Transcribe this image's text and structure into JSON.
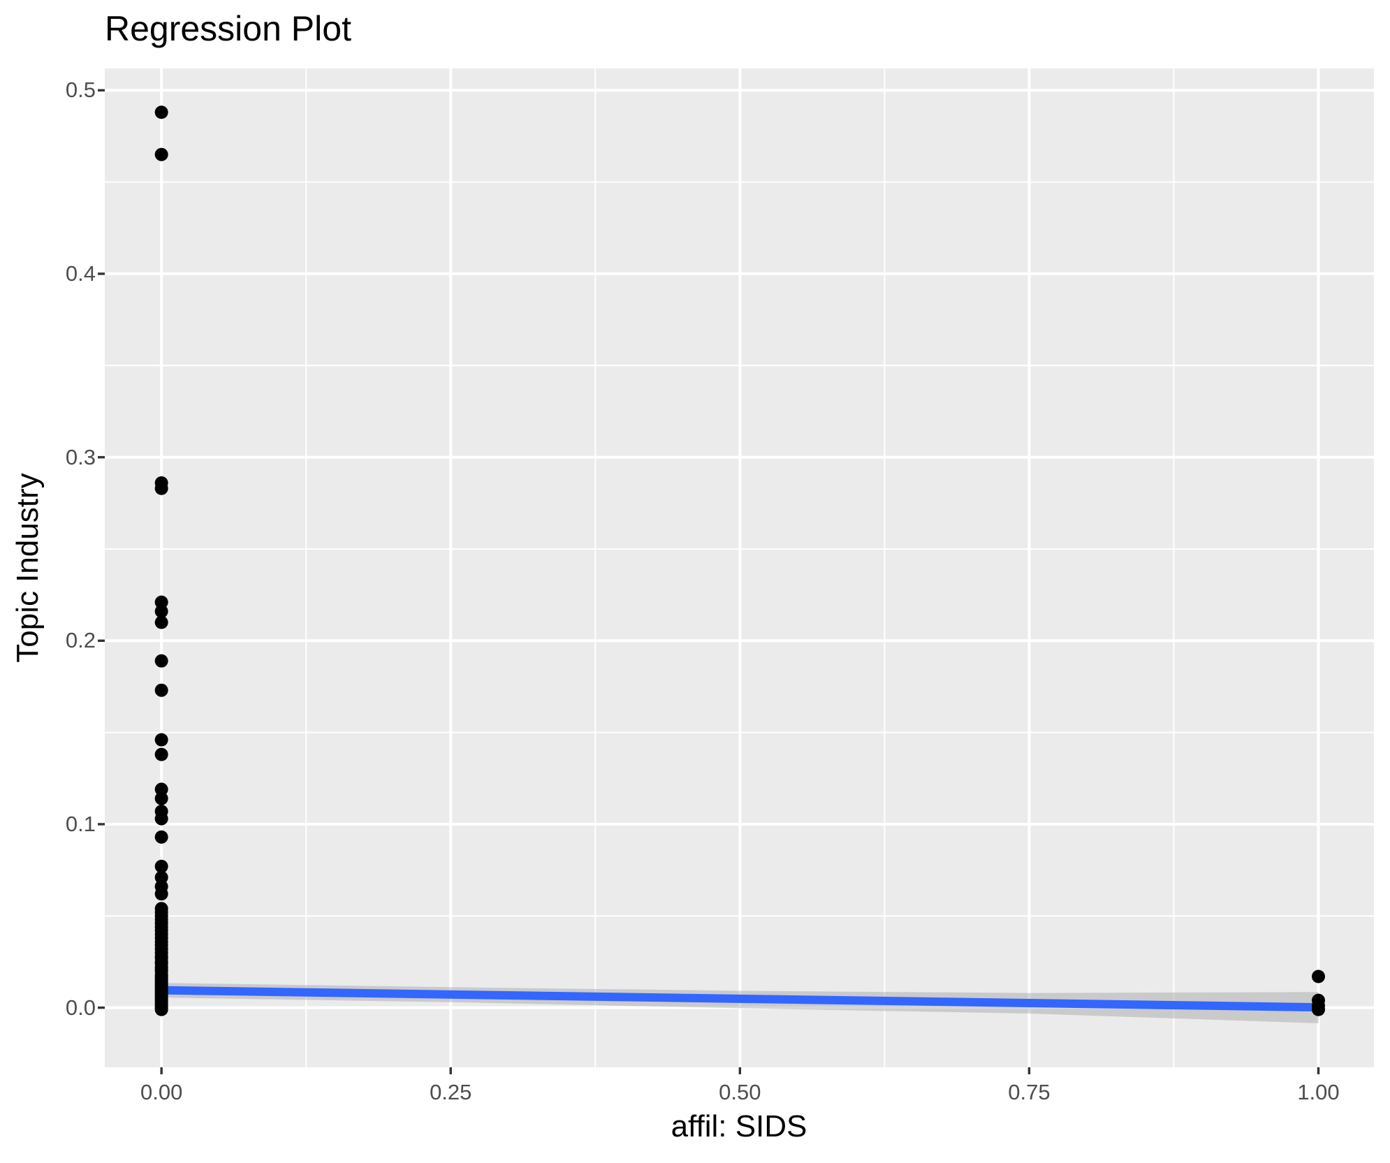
{
  "chart_data": {
    "type": "scatter",
    "title": "Regression Plot",
    "xlabel": "affil: SIDS",
    "ylabel": "Topic Industry",
    "xlim": [
      -0.049,
      1.048
    ],
    "ylim": [
      -0.0325,
      0.5119
    ],
    "grid": true,
    "legend_position": "none",
    "x_ticks": {
      "values": [
        0.0,
        0.25,
        0.5,
        0.75,
        1.0
      ],
      "labels": [
        "0.00",
        "0.25",
        "0.50",
        "0.75",
        "1.00"
      ]
    },
    "y_ticks": {
      "values": [
        0.0,
        0.1,
        0.2,
        0.3,
        0.4,
        0.5
      ],
      "labels": [
        "0.0",
        "0.1",
        "0.2",
        "0.3",
        "0.4",
        "0.5"
      ]
    },
    "x_minor_gridlines": [
      0.125,
      0.375,
      0.625,
      0.875
    ],
    "y_minor_gridlines": [
      0.05,
      0.15,
      0.25,
      0.35,
      0.45
    ],
    "points": [
      {
        "x": 0.0,
        "y": [
          0.488,
          0.465,
          0.286,
          0.283,
          0.221,
          0.216,
          0.21,
          0.189,
          0.173,
          0.146,
          0.138,
          0.119,
          0.114,
          0.107,
          0.103,
          0.093,
          0.077,
          0.071,
          0.066,
          0.062,
          0.054,
          0.052,
          0.05,
          0.048,
          0.046,
          0.044,
          0.042,
          0.04,
          0.038,
          0.036,
          0.034,
          0.032,
          0.03,
          0.028,
          0.027,
          0.025,
          0.024,
          0.022,
          0.021,
          0.02,
          0.018,
          0.017,
          0.016,
          0.015,
          0.014,
          0.013,
          0.012,
          0.011,
          0.01,
          0.009,
          0.008,
          0.007,
          0.006,
          0.005,
          0.004,
          0.003,
          0.002,
          0.001,
          0.0,
          -0.001
        ]
      },
      {
        "x": 1.0,
        "y": [
          0.017,
          0.004,
          0.001,
          -0.001
        ]
      }
    ],
    "regression_line": {
      "x": [
        0.0,
        1.0
      ],
      "y": [
        0.0095,
        0.0002
      ]
    },
    "ci_ribbon": {
      "x": [
        0.0,
        0.25,
        0.5,
        0.75,
        1.0
      ],
      "upper": [
        0.0135,
        0.0112,
        0.0092,
        0.008,
        0.0085
      ],
      "lower": [
        0.0055,
        0.003,
        -0.0003,
        -0.0032,
        -0.0085
      ]
    },
    "styles": {
      "panel_bg": "#EBEBEB",
      "grid_color": "#FFFFFF",
      "point_color": "#000000",
      "line_color": "#3366FF",
      "ribbon_fill": "rgba(153,153,153,0.4)",
      "tick_mark_color": "#333333",
      "tick_label_color": "#4D4D4D",
      "text_color": "#000000"
    }
  }
}
